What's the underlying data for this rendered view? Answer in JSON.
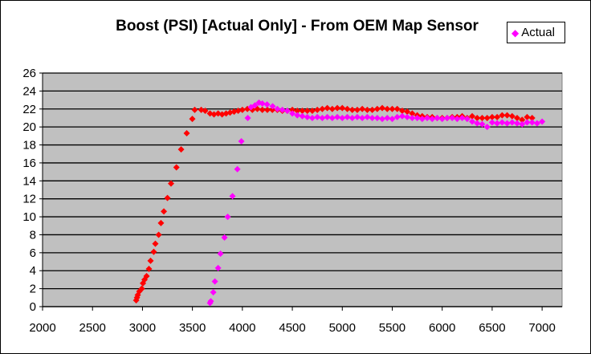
{
  "chart_data": {
    "type": "scatter",
    "title": "Boost (PSI) [Actual Only] - From OEM Map Sensor",
    "xlabel": "",
    "ylabel": "",
    "xlim": [
      2000,
      7200
    ],
    "ylim": [
      0,
      26
    ],
    "x_ticks": [
      2000,
      2500,
      3000,
      3500,
      4000,
      4500,
      5000,
      5500,
      6000,
      6500,
      7000
    ],
    "y_ticks": [
      0,
      2,
      4,
      6,
      8,
      10,
      12,
      14,
      16,
      18,
      20,
      22,
      24,
      26
    ],
    "grid": "horizontal",
    "legend": "top-right",
    "background_color": "#c0c0c0",
    "series": [
      {
        "name": "",
        "color": "#ff0000",
        "in_legend": false,
        "points": [
          [
            2937,
            0.7
          ],
          [
            2945,
            1.0
          ],
          [
            2953,
            1.3
          ],
          [
            2969,
            1.7
          ],
          [
            2993,
            2.0
          ],
          [
            3005,
            2.6
          ],
          [
            3021,
            3.0
          ],
          [
            3041,
            3.4
          ],
          [
            3065,
            4.2
          ],
          [
            3081,
            5.1
          ],
          [
            3113,
            6.1
          ],
          [
            3129,
            7.0
          ],
          [
            3162,
            8.0
          ],
          [
            3185,
            9.3
          ],
          [
            3214,
            10.6
          ],
          [
            3250,
            12.1
          ],
          [
            3286,
            13.7
          ],
          [
            3340,
            15.5
          ],
          [
            3387,
            17.5
          ],
          [
            3443,
            19.3
          ],
          [
            3499,
            20.9
          ],
          [
            3523,
            21.9
          ],
          [
            3588,
            21.9
          ],
          [
            3628,
            21.8
          ],
          [
            3676,
            21.5
          ],
          [
            3716,
            21.4
          ],
          [
            3757,
            21.5
          ],
          [
            3797,
            21.4
          ],
          [
            3837,
            21.5
          ],
          [
            3877,
            21.6
          ],
          [
            3917,
            21.7
          ],
          [
            3958,
            21.8
          ],
          [
            4000,
            21.9
          ],
          [
            4050,
            22.0
          ],
          [
            4100,
            21.9
          ],
          [
            4150,
            22.0
          ],
          [
            4200,
            21.9
          ],
          [
            4250,
            21.9
          ],
          [
            4300,
            21.9
          ],
          [
            4350,
            21.9
          ],
          [
            4400,
            21.8
          ],
          [
            4450,
            21.8
          ],
          [
            4500,
            21.9
          ],
          [
            4550,
            21.8
          ],
          [
            4600,
            21.8
          ],
          [
            4650,
            21.8
          ],
          [
            4700,
            21.8
          ],
          [
            4750,
            21.9
          ],
          [
            4800,
            22.0
          ],
          [
            4850,
            22.1
          ],
          [
            4900,
            22.0
          ],
          [
            4950,
            22.1
          ],
          [
            5000,
            22.1
          ],
          [
            5050,
            22.0
          ],
          [
            5100,
            21.9
          ],
          [
            5150,
            21.9
          ],
          [
            5200,
            22.0
          ],
          [
            5250,
            21.9
          ],
          [
            5300,
            21.9
          ],
          [
            5350,
            22.0
          ],
          [
            5400,
            22.1
          ],
          [
            5450,
            22.0
          ],
          [
            5500,
            22.0
          ],
          [
            5550,
            22.0
          ],
          [
            5600,
            21.8
          ],
          [
            5650,
            21.7
          ],
          [
            5700,
            21.5
          ],
          [
            5750,
            21.3
          ],
          [
            5800,
            21.2
          ],
          [
            5850,
            21.1
          ],
          [
            5900,
            21.1
          ],
          [
            5950,
            21.0
          ],
          [
            6000,
            21.0
          ],
          [
            6050,
            21.0
          ],
          [
            6100,
            21.1
          ],
          [
            6150,
            21.1
          ],
          [
            6200,
            21.2
          ],
          [
            6250,
            21.0
          ],
          [
            6300,
            21.2
          ],
          [
            6350,
            21.0
          ],
          [
            6400,
            21.0
          ],
          [
            6450,
            21.0
          ],
          [
            6500,
            21.1
          ],
          [
            6550,
            21.1
          ],
          [
            6600,
            21.3
          ],
          [
            6650,
            21.3
          ],
          [
            6700,
            21.2
          ],
          [
            6750,
            21.0
          ],
          [
            6800,
            20.8
          ],
          [
            6850,
            21.1
          ],
          [
            6900,
            21.0
          ]
        ]
      },
      {
        "name": "Actual",
        "color": "#ff00ff",
        "in_legend": true,
        "points": [
          [
            3676,
            0.4
          ],
          [
            3684,
            0.6
          ],
          [
            3709,
            1.6
          ],
          [
            3725,
            2.8
          ],
          [
            3757,
            4.3
          ],
          [
            3781,
            5.9
          ],
          [
            3821,
            7.7
          ],
          [
            3853,
            10.0
          ],
          [
            3901,
            12.3
          ],
          [
            3950,
            15.3
          ],
          [
            3990,
            18.4
          ],
          [
            4054,
            21.0
          ],
          [
            4086,
            22.2
          ],
          [
            4126,
            22.4
          ],
          [
            4166,
            22.7
          ],
          [
            4200,
            22.6
          ],
          [
            4247,
            22.5
          ],
          [
            4303,
            22.3
          ],
          [
            4350,
            22.0
          ],
          [
            4400,
            21.9
          ],
          [
            4450,
            21.8
          ],
          [
            4500,
            21.5
          ],
          [
            4550,
            21.3
          ],
          [
            4600,
            21.2
          ],
          [
            4650,
            21.1
          ],
          [
            4700,
            21.0
          ],
          [
            4750,
            21.1
          ],
          [
            4800,
            21.0
          ],
          [
            4850,
            21.1
          ],
          [
            4900,
            21.0
          ],
          [
            4950,
            21.1
          ],
          [
            5000,
            21.0
          ],
          [
            5050,
            21.1
          ],
          [
            5100,
            21.0
          ],
          [
            5150,
            21.1
          ],
          [
            5200,
            21.0
          ],
          [
            5250,
            21.1
          ],
          [
            5300,
            21.0
          ],
          [
            5350,
            21.0
          ],
          [
            5400,
            20.9
          ],
          [
            5450,
            21.0
          ],
          [
            5500,
            20.9
          ],
          [
            5550,
            21.1
          ],
          [
            5600,
            21.2
          ],
          [
            5650,
            21.1
          ],
          [
            5700,
            21.0
          ],
          [
            5750,
            21.0
          ],
          [
            5800,
            20.9
          ],
          [
            5850,
            21.0
          ],
          [
            5900,
            20.9
          ],
          [
            5950,
            21.0
          ],
          [
            6000,
            20.9
          ],
          [
            6050,
            21.0
          ],
          [
            6100,
            21.0
          ],
          [
            6150,
            20.9
          ],
          [
            6200,
            21.0
          ],
          [
            6250,
            20.9
          ],
          [
            6300,
            20.6
          ],
          [
            6350,
            20.4
          ],
          [
            6400,
            20.3
          ],
          [
            6450,
            20.0
          ],
          [
            6500,
            20.5
          ],
          [
            6550,
            20.4
          ],
          [
            6600,
            20.5
          ],
          [
            6650,
            20.4
          ],
          [
            6700,
            20.5
          ],
          [
            6750,
            20.4
          ],
          [
            6800,
            20.3
          ],
          [
            6850,
            20.5
          ],
          [
            6900,
            20.5
          ],
          [
            6950,
            20.4
          ],
          [
            7000,
            20.6
          ]
        ]
      }
    ]
  }
}
